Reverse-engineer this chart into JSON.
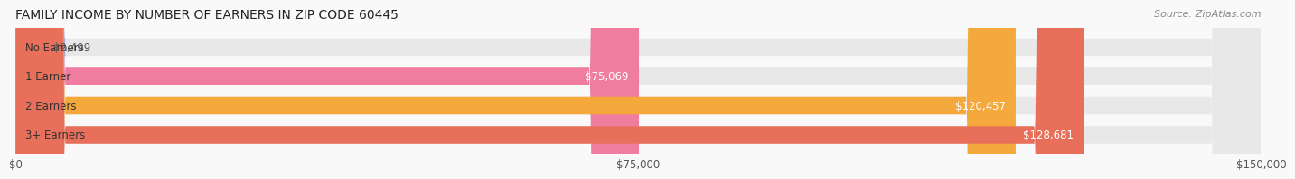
{
  "title": "FAMILY INCOME BY NUMBER OF EARNERS IN ZIP CODE 60445",
  "source": "Source: ZipAtlas.com",
  "categories": [
    "No Earners",
    "1 Earner",
    "2 Earners",
    "3+ Earners"
  ],
  "values": [
    2499,
    75069,
    120457,
    128681
  ],
  "bar_colors": [
    "#a8acd6",
    "#f07ca0",
    "#f5a83c",
    "#e8705a"
  ],
  "bar_bg_color": "#e8e8e8",
  "xlim": [
    0,
    150000
  ],
  "xticks": [
    0,
    75000,
    150000
  ],
  "xtick_labels": [
    "$0",
    "$75,000",
    "$150,000"
  ],
  "background_color": "#f9f9f9",
  "title_fontsize": 10,
  "source_fontsize": 8,
  "bar_label_fontsize": 8.5,
  "category_fontsize": 8.5,
  "tick_fontsize": 8.5,
  "bar_height": 0.6
}
